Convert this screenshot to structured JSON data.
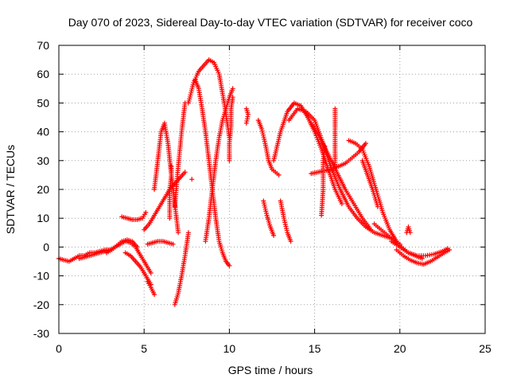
{
  "chart_data": {
    "type": "scatter",
    "title": "Day 070 of 2023, Sidereal Day-to-day VTEC variation (SDTVAR) for receiver coco",
    "xlabel": "GPS time / hours",
    "ylabel": "SDTVAR / TECUs",
    "xlim": [
      0,
      25
    ],
    "ylim": [
      -30,
      70
    ],
    "xticks": [
      "0",
      "5",
      "10",
      "15",
      "20",
      "25"
    ],
    "yticks": [
      "-30",
      "-20",
      "-10",
      "0",
      "10",
      "20",
      "30",
      "40",
      "50",
      "60",
      "70"
    ],
    "grid": true,
    "marker": "+",
    "series_color": "#ff0000",
    "series": [
      {
        "name": "early-flat",
        "x": [
          0.0,
          0.3,
          0.6,
          0.9,
          1.2,
          1.5,
          1.8,
          2.1,
          2.4,
          2.7,
          3.0
        ],
        "y": [
          -4,
          -4.5,
          -5,
          -4,
          -3,
          -3,
          -2,
          -2,
          -1.5,
          -1,
          -1
        ]
      },
      {
        "name": "mid-low",
        "x": [
          1.2,
          1.5,
          1.8,
          2.1,
          2.4,
          2.7,
          3.0,
          3.3,
          3.6,
          3.9,
          4.2,
          4.5,
          4.8,
          5.1,
          5.4
        ],
        "y": [
          -4,
          -3.5,
          -3,
          -2.5,
          -2,
          -1.5,
          -1,
          0,
          1,
          2,
          1.5,
          0,
          -3,
          -6,
          -9
        ]
      },
      {
        "name": "hump-4",
        "x": [
          2.8,
          3.1,
          3.4,
          3.7,
          4.0,
          4.3,
          4.6
        ],
        "y": [
          -2,
          -1,
          0.5,
          2,
          2.5,
          2,
          0
        ]
      },
      {
        "name": "descend-to-5",
        "x": [
          3.9,
          4.2,
          4.5,
          4.8,
          5.1,
          5.4
        ],
        "y": [
          -2,
          -3,
          -5,
          -7,
          -10,
          -13
        ]
      },
      {
        "name": "lonely-down",
        "x": [
          5.2,
          5.4,
          5.6
        ],
        "y": [
          -12,
          -14,
          -16.5
        ]
      },
      {
        "name": "bump-4",
        "x": [
          3.7,
          4.0,
          4.3,
          4.6,
          4.9,
          5.1
        ],
        "y": [
          10.5,
          10,
          9.5,
          9.5,
          10,
          12
        ]
      },
      {
        "name": "ramp-5-7",
        "x": [
          5.0,
          5.3,
          5.6,
          5.9,
          6.2,
          6.5,
          6.8,
          7.1,
          7.4
        ],
        "y": [
          6,
          8,
          11,
          14,
          17,
          20,
          22,
          24,
          26
        ]
      },
      {
        "name": "peak-6",
        "x": [
          5.6,
          5.8,
          6.0,
          6.2,
          6.4,
          6.6,
          6.8,
          7.0
        ],
        "y": [
          20,
          30,
          40,
          43,
          36,
          25,
          15,
          5
        ]
      },
      {
        "name": "spike-6.6",
        "x": [
          6.5,
          6.5,
          6.5,
          6.6,
          6.6
        ],
        "y": [
          10,
          15,
          20,
          25,
          28
        ]
      },
      {
        "name": "flat-6",
        "x": [
          5.2,
          5.5,
          5.8,
          6.1,
          6.4,
          6.7
        ],
        "y": [
          1,
          1.5,
          2,
          2,
          1.5,
          1
        ]
      },
      {
        "name": "climb-7",
        "x": [
          6.8,
          7.0,
          7.2,
          7.4,
          7.6
        ],
        "y": [
          -20,
          -16,
          -10,
          -3,
          5
        ]
      },
      {
        "name": "climb-7b",
        "x": [
          6.8,
          7.0,
          7.2,
          7.4
        ],
        "y": [
          14,
          28,
          40,
          50
        ]
      },
      {
        "name": "lone-7.8",
        "x": [
          7.8
        ],
        "y": [
          23.5
        ]
      },
      {
        "name": "big-peak",
        "x": [
          7.6,
          7.9,
          8.2,
          8.5,
          8.8,
          9.1,
          9.4,
          9.7,
          10.0
        ],
        "y": [
          50,
          57,
          61,
          63,
          65,
          64,
          60,
          50,
          38
        ]
      },
      {
        "name": "fall-8",
        "x": [
          8.0,
          8.2,
          8.4,
          8.6,
          8.8,
          9.0,
          9.2,
          9.4,
          9.6,
          9.8,
          10.0
        ],
        "y": [
          58,
          55,
          48,
          40,
          30,
          20,
          10,
          2,
          -2,
          -5,
          -6.5
        ]
      },
      {
        "name": "rise-9",
        "x": [
          8.6,
          8.8,
          9.0,
          9.2,
          9.4,
          9.6,
          9.8,
          10.0,
          10.2
        ],
        "y": [
          2,
          10,
          20,
          30,
          38,
          44,
          48,
          52,
          55
        ]
      },
      {
        "name": "col-10",
        "x": [
          10.0,
          10.0,
          10.1,
          10.1,
          10.2
        ],
        "y": [
          30,
          36,
          42,
          48,
          52
        ]
      },
      {
        "name": "pair-11",
        "x": [
          11.0,
          11.1,
          11.0
        ],
        "y": [
          43,
          46,
          48
        ]
      },
      {
        "name": "cluster-11.8",
        "x": [
          11.7,
          11.9,
          12.1,
          12.3,
          12.5,
          12.7,
          12.9
        ],
        "y": [
          44,
          41,
          36,
          30,
          27,
          26,
          25
        ]
      },
      {
        "name": "drop-12",
        "x": [
          12.0,
          12.2,
          12.4,
          12.6
        ],
        "y": [
          16,
          11,
          7,
          4
        ]
      },
      {
        "name": "drop-13",
        "x": [
          13.0,
          13.2,
          13.4,
          13.6
        ],
        "y": [
          16,
          10,
          5,
          2
        ]
      },
      {
        "name": "arc-13-16",
        "x": [
          12.6,
          13.0,
          13.4,
          13.8,
          14.2,
          14.6,
          15.0,
          15.4,
          15.8,
          16.2,
          16.6
        ],
        "y": [
          30,
          40,
          47,
          50,
          49,
          45,
          40,
          34,
          27,
          20,
          15
        ]
      },
      {
        "name": "wide-arc",
        "x": [
          13.5,
          14.0,
          14.5,
          15.0,
          15.5,
          16.0,
          16.5,
          17.0,
          17.5,
          18.0,
          18.5,
          19.0,
          19.5,
          20.0
        ],
        "y": [
          44,
          48,
          47,
          44,
          36,
          27,
          20,
          14,
          10,
          7,
          5,
          4,
          3,
          1
        ]
      },
      {
        "name": "fall-15-17",
        "x": [
          14.8,
          15.3,
          15.8,
          16.3,
          16.8,
          17.3,
          17.8,
          18.3
        ],
        "y": [
          43,
          38,
          32,
          26,
          20,
          15,
          10,
          6
        ]
      },
      {
        "name": "spike-15.5",
        "x": [
          15.4,
          15.5,
          15.5,
          15.6
        ],
        "y": [
          11,
          20,
          30,
          35
        ]
      },
      {
        "name": "spike-16.2",
        "x": [
          16.2,
          16.2,
          16.2,
          16.2
        ],
        "y": [
          28,
          36,
          42,
          48
        ]
      },
      {
        "name": "mid-26",
        "x": [
          14.8,
          15.2,
          15.6,
          16.0,
          16.4,
          16.8,
          17.2,
          17.6,
          18.0
        ],
        "y": [
          25.5,
          26,
          26.5,
          27,
          28,
          29,
          31,
          33,
          36
        ]
      },
      {
        "name": "arc-17-19",
        "x": [
          17.0,
          17.4,
          17.8,
          18.2,
          18.6,
          19.0,
          19.4,
          19.8
        ],
        "y": [
          37,
          36,
          34,
          28,
          20,
          12,
          6,
          2
        ]
      },
      {
        "name": "wave-19",
        "x": [
          18.5,
          18.9,
          19.3,
          19.7,
          20.1,
          20.5,
          20.9,
          21.3
        ],
        "y": [
          8,
          6,
          4,
          2,
          0,
          -2,
          -3,
          -4
        ]
      },
      {
        "name": "tail-20-23",
        "x": [
          19.8,
          20.2,
          20.6,
          21.0,
          21.4,
          21.8,
          22.2,
          22.6,
          22.9
        ],
        "y": [
          -1,
          -3,
          -4.5,
          -5.5,
          -6,
          -5,
          -3.5,
          -2,
          -1
        ]
      },
      {
        "name": "tail-20-23b",
        "x": [
          19.5,
          20.0,
          20.5,
          21.0,
          21.5,
          22.0,
          22.5,
          22.8
        ],
        "y": [
          2,
          0,
          -2,
          -3,
          -3,
          -2.5,
          -1.5,
          -0.5
        ]
      },
      {
        "name": "spike-20.5",
        "x": [
          20.4,
          20.5,
          20.6
        ],
        "y": [
          5,
          7,
          5
        ]
      },
      {
        "name": "seg-18",
        "x": [
          17.8,
          18.1,
          18.4,
          18.7
        ],
        "y": [
          30,
          25,
          20,
          14
        ]
      }
    ]
  }
}
